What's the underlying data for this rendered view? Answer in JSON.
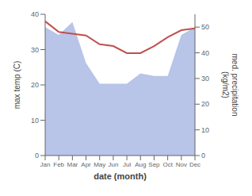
{
  "chart_data": {
    "type": "line",
    "xlabel": "date (month)",
    "ylabel": "max temp (C)",
    "y2label": "med. precipitation\n(kg/m2)",
    "categories": [
      "Jan",
      "Feb",
      "Mar",
      "Apr",
      "May",
      "Jun",
      "Jul",
      "Aug",
      "Sep",
      "Oct",
      "Nov",
      "Dec"
    ],
    "series": [
      {
        "type": "area",
        "color": "#b8c4e8",
        "axis": "y2",
        "values": [
          50,
          47,
          52,
          36,
          28,
          28,
          28,
          32,
          31,
          31,
          47,
          50
        ]
      },
      {
        "type": "line",
        "color": "#c0504d",
        "values": [
          38,
          35,
          34.5,
          34,
          31.5,
          31,
          29,
          29,
          31,
          33.5,
          35.5,
          36
        ]
      }
    ],
    "ylim": [
      0,
      40
    ],
    "yticks": [
      0,
      10,
      20,
      30,
      40
    ],
    "y2lim": [
      0,
      55
    ],
    "y2ticks": [
      0,
      10,
      20,
      30,
      40,
      50
    ],
    "grid": false
  }
}
